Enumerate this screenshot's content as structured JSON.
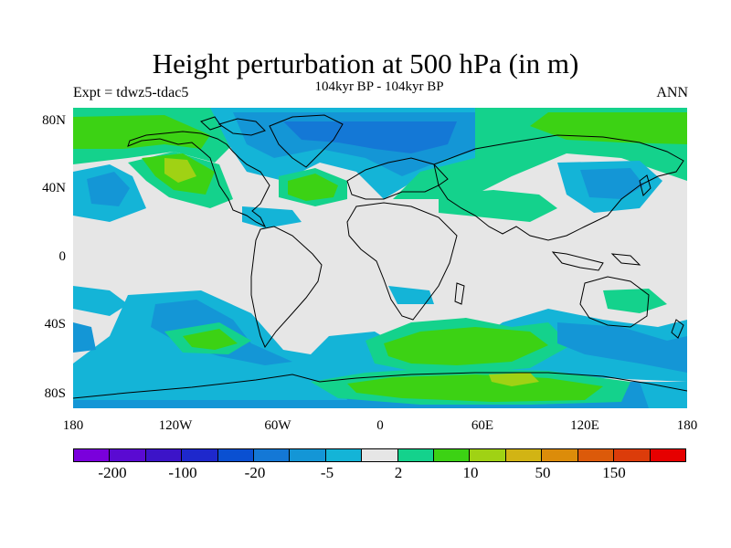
{
  "title": "Height perturbation at 500 hPa (in m)",
  "subtitle": "104kyr BP - 104kyr BP",
  "left_label": "Expt = tdwz5-tdac5",
  "right_label": "ANN",
  "map": {
    "projection": "cylindrical-equidistant",
    "lon_range": [
      -180,
      180
    ],
    "lat_range": [
      -90,
      90
    ],
    "y_ticks": [
      "80N",
      "40N",
      "0",
      "40S",
      "80S"
    ],
    "x_ticks": [
      "180",
      "120W",
      "60W",
      "0",
      "60E",
      "120E",
      "180"
    ],
    "background_color": "#e6e6e6",
    "coastline_color": "#000000"
  },
  "colorbar": {
    "colors": [
      "#7a00dc",
      "#5a0ad2",
      "#3c14c8",
      "#1e28cc",
      "#0a50d2",
      "#1478d6",
      "#1496d6",
      "#14b4d7",
      "#e6e6e6",
      "#14d28c",
      "#3cd214",
      "#a0d214",
      "#d2b414",
      "#dc8c0a",
      "#dc5a0a",
      "#dc3c0a",
      "#e60000"
    ],
    "labels": [
      "-200",
      "-100",
      "-20",
      "-5",
      "2",
      "10",
      "50",
      "150"
    ]
  },
  "legend_colors": {
    "neg_light": "#14b4d7",
    "neg_mid": "#1496d6",
    "neg_dark": "#1478d6",
    "pos_light": "#14d28c",
    "pos_mid": "#3cd214",
    "pos_high": "#a0d214"
  }
}
